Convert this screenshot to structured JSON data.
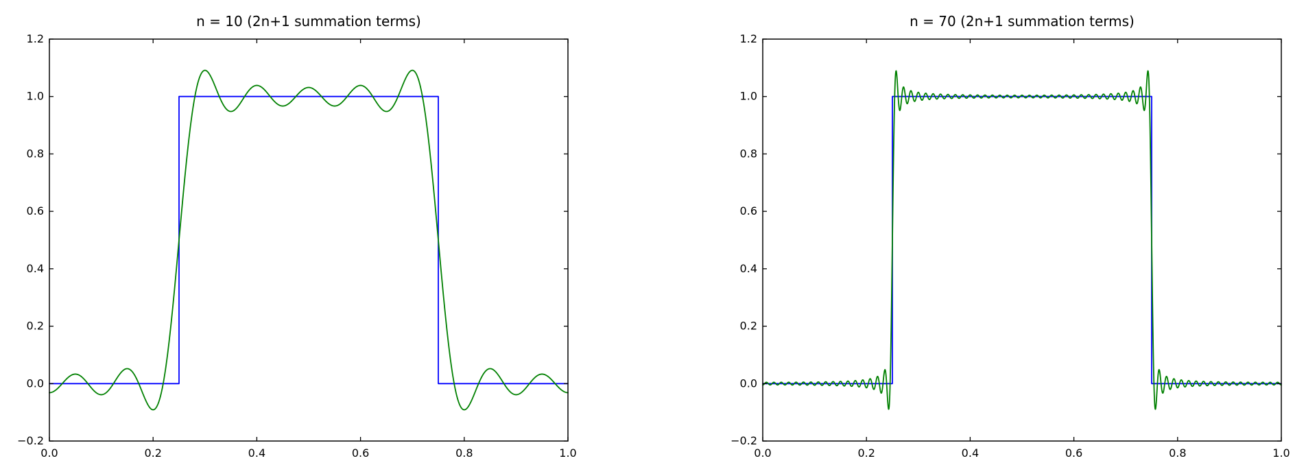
{
  "figure": {
    "background": "#ffffff",
    "axis_color": "#000000",
    "tick_label_color": "#000000"
  },
  "chart_data": [
    {
      "type": "line",
      "title": "n = 10 (2n+1 summation terms)",
      "xlabel": "",
      "ylabel": "",
      "xlim": [
        0.0,
        1.0
      ],
      "ylim": [
        -0.2,
        1.2
      ],
      "xtick_values": [
        0.0,
        0.2,
        0.4,
        0.6,
        0.8,
        1.0
      ],
      "xtick_labels": [
        "0.0",
        "0.2",
        "0.4",
        "0.6",
        "0.8",
        "1.0"
      ],
      "ytick_values": [
        -0.2,
        0.0,
        0.2,
        0.4,
        0.6,
        0.8,
        1.0,
        1.2
      ],
      "ytick_labels": [
        "−0.2",
        "0.0",
        "0.2",
        "0.4",
        "0.6",
        "0.8",
        "1.0",
        "1.2"
      ],
      "grid": false,
      "legend": "none",
      "series": [
        {
          "name": "square-wave",
          "kind": "polyline",
          "color": "#0000ff",
          "points_x": [
            0.0,
            0.25,
            0.25,
            0.75,
            0.75,
            1.0
          ],
          "points_y": [
            0.0,
            0.0,
            1.0,
            1.0,
            0.0,
            0.0
          ]
        },
        {
          "name": "fourier-partial-sum",
          "kind": "function",
          "function": "fourier-square-partial-sum",
          "color": "#008000",
          "n": 10,
          "square": {
            "rise_x": 0.25,
            "fall_x": 0.75,
            "low": 0.0,
            "high": 1.0,
            "period": 1.0
          },
          "samples": 2000
        }
      ]
    },
    {
      "type": "line",
      "title": "n = 70 (2n+1 summation terms)",
      "xlabel": "",
      "ylabel": "",
      "xlim": [
        0.0,
        1.0
      ],
      "ylim": [
        -0.2,
        1.2
      ],
      "xtick_values": [
        0.0,
        0.2,
        0.4,
        0.6,
        0.8,
        1.0
      ],
      "xtick_labels": [
        "0.0",
        "0.2",
        "0.4",
        "0.6",
        "0.8",
        "1.0"
      ],
      "ytick_values": [
        -0.2,
        0.0,
        0.2,
        0.4,
        0.6,
        0.8,
        1.0,
        1.2
      ],
      "ytick_labels": [
        "−0.2",
        "0.0",
        "0.2",
        "0.4",
        "0.6",
        "0.8",
        "1.0",
        "1.2"
      ],
      "grid": false,
      "legend": "none",
      "series": [
        {
          "name": "square-wave",
          "kind": "polyline",
          "color": "#0000ff",
          "points_x": [
            0.0,
            0.25,
            0.25,
            0.75,
            0.75,
            1.0
          ],
          "points_y": [
            0.0,
            0.0,
            1.0,
            1.0,
            0.0,
            0.0
          ]
        },
        {
          "name": "fourier-partial-sum",
          "kind": "function",
          "function": "fourier-square-partial-sum",
          "color": "#008000",
          "n": 70,
          "square": {
            "rise_x": 0.25,
            "fall_x": 0.75,
            "low": 0.0,
            "high": 1.0,
            "period": 1.0
          },
          "samples": 2600
        }
      ]
    }
  ]
}
